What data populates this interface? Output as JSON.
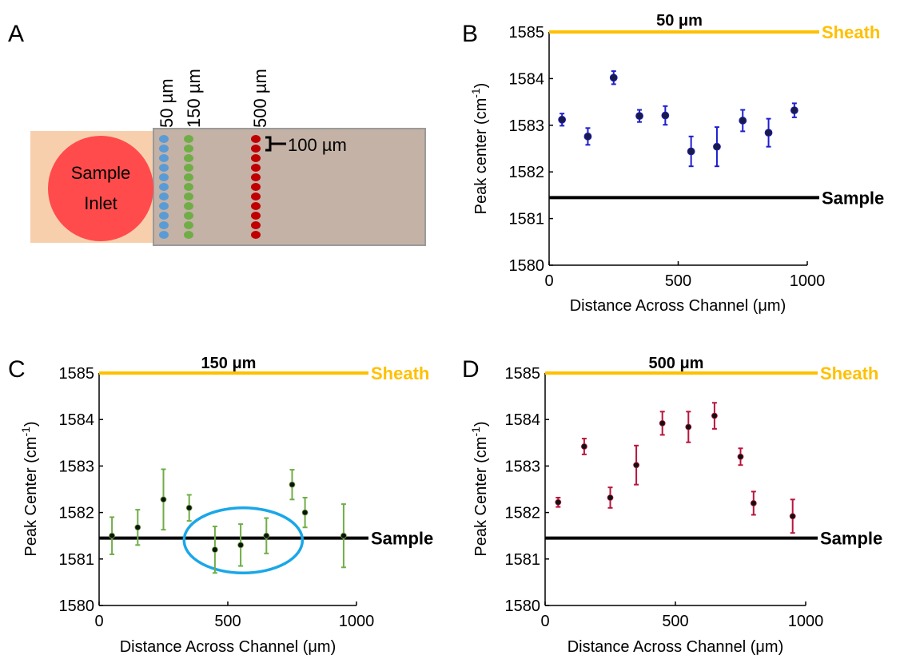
{
  "panel_a": {
    "letter": "A",
    "inlet_label_line1": "Sample",
    "inlet_label_line2": "Inlet",
    "spacing_label": "100 µm",
    "position_labels": [
      "50 µm",
      "150 µm",
      "500 µm"
    ],
    "colors": {
      "inlet": "#ff4b4b",
      "sheath_region": "#f8cfad",
      "channel": "#c4b2a6",
      "dots_50": "#5b9bd5",
      "dots_150": "#70ad47",
      "dots_500": "#c00000"
    }
  },
  "colors": {
    "sheath": "#ffc000",
    "sample": "#000000",
    "blue": "#1f1fd0",
    "green": "#70ad47",
    "red": "#b8153c",
    "circle": "#1aa7e8"
  },
  "chart_data": [
    {
      "id": "B",
      "letter": "B",
      "type": "scatter",
      "title": "50 μm",
      "xlabel": "Distance Across Channel (μm)",
      "ylabel": "Peak center (cm",
      "ylabel_sup": "-1",
      "ylabel_close": ")",
      "xlim": [
        0,
        1000
      ],
      "ylim": [
        1580,
        1585
      ],
      "xticks": [
        0,
        500,
        1000
      ],
      "yticks": [
        1580,
        1581,
        1582,
        1583,
        1584,
        1585
      ],
      "reference_lines": [
        {
          "label": "Sheath",
          "y": 1585,
          "color": "#ffc000"
        },
        {
          "label": "Sample",
          "y": 1581.45,
          "color": "#000000"
        }
      ],
      "series": [
        {
          "color": "#1f1fd0",
          "x": [
            50,
            150,
            250,
            350,
            450,
            550,
            650,
            750,
            850,
            950
          ],
          "y": [
            1583.12,
            1582.76,
            1584.02,
            1583.2,
            1583.21,
            1582.44,
            1582.54,
            1583.1,
            1582.84,
            1583.32
          ],
          "err": [
            0.13,
            0.18,
            0.14,
            0.13,
            0.2,
            0.32,
            0.42,
            0.23,
            0.3,
            0.15
          ]
        }
      ]
    },
    {
      "id": "C",
      "letter": "C",
      "type": "scatter",
      "title": "150 μm",
      "xlabel": "Distance Across Channel (μm)",
      "ylabel": "Peak Center (cm",
      "ylabel_sup": "-1",
      "ylabel_close": ")",
      "xlim": [
        0,
        1000
      ],
      "ylim": [
        1580,
        1585
      ],
      "xticks": [
        0,
        500,
        1000
      ],
      "yticks": [
        1580,
        1581,
        1582,
        1583,
        1584,
        1585
      ],
      "reference_lines": [
        {
          "label": "Sheath",
          "y": 1585,
          "color": "#ffc000"
        },
        {
          "label": "Sample",
          "y": 1581.45,
          "color": "#000000"
        }
      ],
      "annotation_ellipse": {
        "cx": 560,
        "cy": 1581.4,
        "rx": 230,
        "ry": 0.7,
        "color": "#1aa7e8"
      },
      "series": [
        {
          "color": "#70ad47",
          "x": [
            50,
            150,
            250,
            350,
            450,
            550,
            650,
            750,
            800,
            950
          ],
          "y": [
            1581.5,
            1581.68,
            1582.28,
            1582.1,
            1581.2,
            1581.3,
            1581.5,
            1582.6,
            1582.0,
            1581.5
          ],
          "err": [
            0.4,
            0.38,
            0.65,
            0.28,
            0.5,
            0.45,
            0.38,
            0.32,
            0.32,
            0.68
          ]
        }
      ]
    },
    {
      "id": "D",
      "letter": "D",
      "type": "scatter",
      "title": "500 μm",
      "xlabel": "Distance Across Channel (μm)",
      "ylabel": "Peak Center (cm",
      "ylabel_sup": "-1",
      "ylabel_close": ")",
      "xlim": [
        0,
        1000
      ],
      "ylim": [
        1580,
        1585
      ],
      "xticks": [
        0,
        500,
        1000
      ],
      "yticks": [
        1580,
        1581,
        1582,
        1583,
        1584,
        1585
      ],
      "reference_lines": [
        {
          "label": "Sheath",
          "y": 1585,
          "color": "#ffc000"
        },
        {
          "label": "Sample",
          "y": 1581.45,
          "color": "#000000"
        }
      ],
      "series": [
        {
          "color": "#b8153c",
          "x": [
            50,
            150,
            250,
            350,
            450,
            550,
            650,
            750,
            800,
            950
          ],
          "y": [
            1582.22,
            1583.42,
            1582.32,
            1583.02,
            1583.92,
            1583.84,
            1584.08,
            1583.2,
            1582.2,
            1581.92
          ],
          "err": [
            0.1,
            0.17,
            0.22,
            0.42,
            0.25,
            0.33,
            0.28,
            0.18,
            0.25,
            0.36
          ]
        }
      ]
    }
  ]
}
